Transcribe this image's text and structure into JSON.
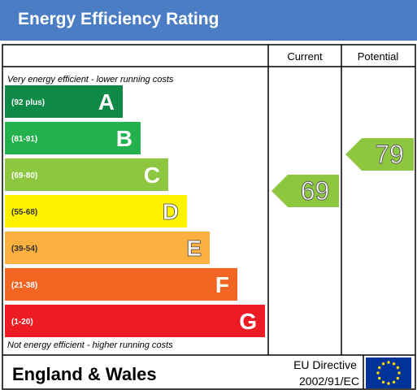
{
  "header": {
    "title": "Energy Efficiency Rating"
  },
  "columns": {
    "current": "Current",
    "potential": "Potential"
  },
  "notes": {
    "top": "Very energy efficient - lower running costs",
    "bottom": "Not energy efficient - higher running costs"
  },
  "footer": {
    "region": "England & Wales",
    "directive_line1": "EU Directive",
    "directive_line2": "2002/91/EC"
  },
  "chart_data": {
    "type": "bar",
    "title": "Energy Efficiency Rating",
    "bands": [
      {
        "letter": "A",
        "range": "(92 plus)",
        "min": 92,
        "max": 100,
        "color": "#0e8a46"
      },
      {
        "letter": "B",
        "range": "(81-91)",
        "min": 81,
        "max": 91,
        "color": "#23b14d"
      },
      {
        "letter": "C",
        "range": "(69-80)",
        "min": 69,
        "max": 80,
        "color": "#8dc63f"
      },
      {
        "letter": "D",
        "range": "(55-68)",
        "min": 55,
        "max": 68,
        "color": "#fff200"
      },
      {
        "letter": "E",
        "range": "(39-54)",
        "min": 39,
        "max": 54,
        "color": "#fbb040"
      },
      {
        "letter": "F",
        "range": "(21-38)",
        "min": 21,
        "max": 38,
        "color": "#f26522"
      },
      {
        "letter": "G",
        "range": "(1-20)",
        "min": 1,
        "max": 20,
        "color": "#ed1c24"
      }
    ],
    "current": {
      "value": 69,
      "band": "C",
      "color": "#8dc63f"
    },
    "potential": {
      "value": 79,
      "band": "C",
      "color": "#8dc63f"
    }
  }
}
